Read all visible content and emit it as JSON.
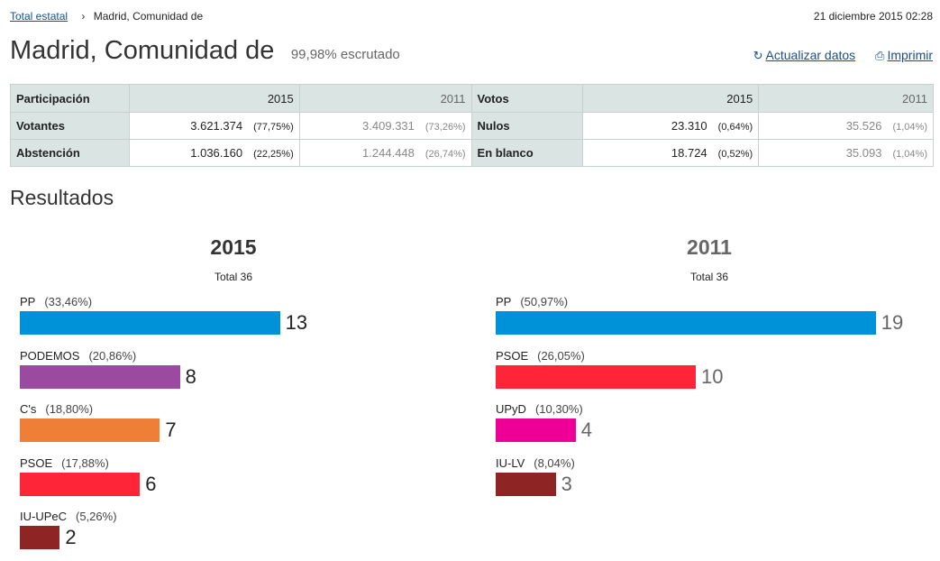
{
  "breadcrumb": {
    "root": "Total estatal",
    "current": "Madrid, Comunidad de"
  },
  "datetime": "21 diciembre 2015 02:28",
  "title": "Madrid, Comunidad de",
  "scrutiny": "99,98% escrutado",
  "actions": {
    "update": "Actualizar datos",
    "print": "Imprimir"
  },
  "participation": {
    "header": "Participación",
    "y2015": "2015",
    "y2011": "2011",
    "rows": [
      {
        "label": "Votantes",
        "v2015": "3.621.374",
        "p2015": "(77,75%)",
        "v2011": "3.409.331",
        "p2011": "(73,26%)"
      },
      {
        "label": "Abstención",
        "v2015": "1.036.160",
        "p2015": "(22,25%)",
        "v2011": "1.244.448",
        "p2011": "(26,74%)"
      }
    ]
  },
  "votes": {
    "header": "Votos",
    "y2015": "2015",
    "y2011": "2011",
    "rows": [
      {
        "label": "Nulos",
        "v2015": "23.310",
        "p2015": "(0,64%)",
        "v2011": "35.526",
        "p2011": "(1,04%)"
      },
      {
        "label": "En blanco",
        "v2015": "18.724",
        "p2015": "(0,52%)",
        "v2011": "35.093",
        "p2011": "(1,04%)"
      }
    ]
  },
  "results_title": "Resultados",
  "colors": {
    "PP": "#0092d8",
    "PODEMOS": "#9b4aa0",
    "C's": "#ef7f37",
    "PSOE": "#fd2537",
    "IU-UPeC": "#8f2424",
    "UPyD": "#ee0096",
    "IU-LV": "#8f2424"
  },
  "chart_data": [
    {
      "type": "bar",
      "title": "2015",
      "subtitle": "Total 36",
      "total_seats": 36,
      "categories": [
        "PP",
        "PODEMOS",
        "C's",
        "PSOE",
        "IU-UPeC"
      ],
      "percentages": [
        "(33,46%)",
        "(20,86%)",
        "(18,80%)",
        "(17,88%)",
        "(5,26%)"
      ],
      "values": [
        13,
        8,
        7,
        6,
        2
      ]
    },
    {
      "type": "bar",
      "title": "2011",
      "subtitle": "Total 36",
      "total_seats": 36,
      "categories": [
        "PP",
        "PSOE",
        "UPyD",
        "IU-LV"
      ],
      "percentages": [
        "(50,97%)",
        "(26,05%)",
        "(10,30%)",
        "(8,04%)"
      ],
      "values": [
        19,
        10,
        4,
        3
      ]
    }
  ]
}
